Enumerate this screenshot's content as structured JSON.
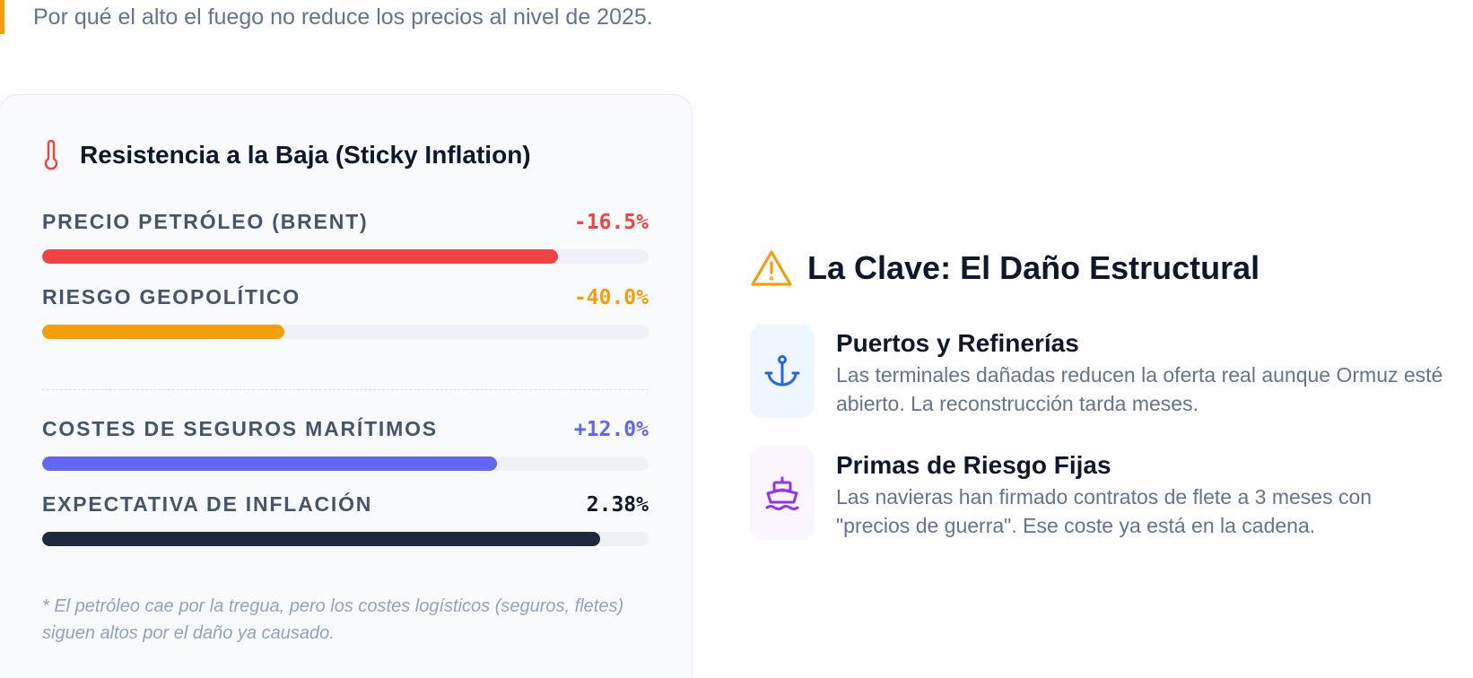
{
  "subtitle": "Por qué el alto el fuego no reduce los precios al nivel de 2025.",
  "card": {
    "title": "Resistencia a la Baja (Sticky Inflation)",
    "icon": "thermometer-icon",
    "metrics": [
      {
        "label": "PRECIO PETRÓLEO (BRENT)",
        "value": "-16.5%",
        "fill_fraction": 0.85,
        "color": "#ef4444"
      },
      {
        "label": "RIESGO GEOPOLÍTICO",
        "value": "-40.0%",
        "fill_fraction": 0.4,
        "color": "#f59e0b"
      },
      {
        "label": "COSTES DE SEGUROS MARÍTIMOS",
        "value": "+12.0%",
        "fill_fraction": 0.75,
        "color": "#6366f1"
      },
      {
        "label": "EXPECTATIVA DE INFLACIÓN",
        "value": "2.38%",
        "fill_fraction": 0.92,
        "color": "#1e293b"
      }
    ],
    "footnote": "* El petróleo cae por la tregua, pero los costes logísticos (seguros, fletes) siguen altos por el daño ya causado."
  },
  "key": {
    "icon": "warning-icon",
    "title": "La Clave: El Daño Estructural",
    "items": [
      {
        "icon": "anchor-icon",
        "title": "Puertos y Refinerías",
        "description": "Las terminales dañadas reducen la oferta real aunque Ormuz esté abierto. La reconstrucción tarda meses.",
        "icon_color": "#2563eb",
        "icon_bg": "#eff6ff"
      },
      {
        "icon": "ship-icon",
        "title": "Primas de Riesgo Fijas",
        "description": "Las navieras han firmado contratos de flete a 3 meses con \"precios de guerra\". Ese coste ya está en la cadena.",
        "icon_color": "#9333ea",
        "icon_bg": "#faf5ff"
      }
    ]
  },
  "colors": {
    "accent": "#f59e0b",
    "card_bg": "#f8fafc",
    "track": "#eef2f7"
  }
}
